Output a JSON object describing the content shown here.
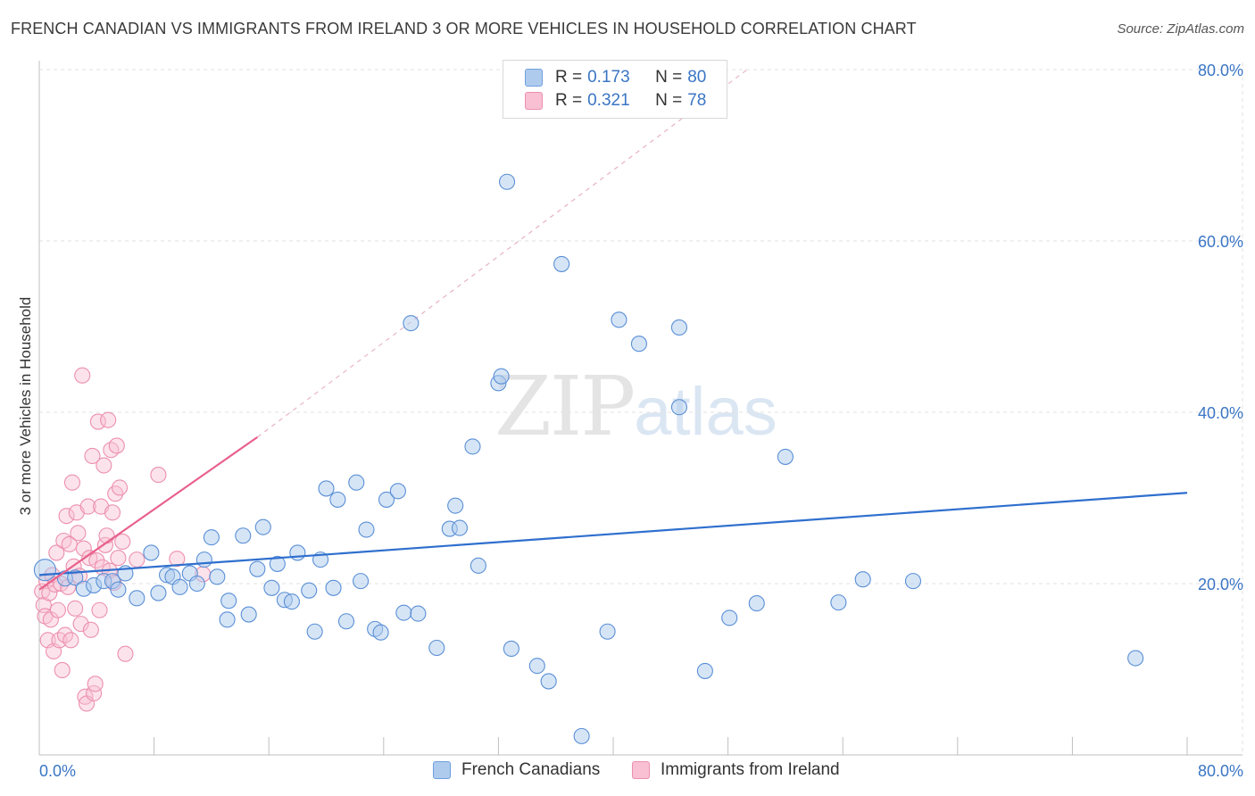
{
  "header": {
    "title": "FRENCH CANADIAN VS IMMIGRANTS FROM IRELAND 3 OR MORE VEHICLES IN HOUSEHOLD CORRELATION CHART",
    "source": "Source: ZipAtlas.com"
  },
  "watermark": {
    "zip": "ZIP",
    "atlas": "atlas"
  },
  "legend": {
    "rows": [
      {
        "r_label": "R =",
        "r_value": "0.173",
        "n_label": "N =",
        "n_value": "80",
        "fill": "#aecbee",
        "stroke": "#6f9fde"
      },
      {
        "r_label": "R =",
        "r_value": "0.321",
        "n_label": "N =",
        "n_value": "78",
        "fill": "#f8c0d2",
        "stroke": "#ec8fae"
      }
    ]
  },
  "bottom_legend": {
    "items": [
      {
        "label": "French Canadians",
        "fill": "#aecbee",
        "stroke": "#6f9fde"
      },
      {
        "label": "Immigrants from Ireland",
        "fill": "#f8c0d2",
        "stroke": "#ec8fae"
      }
    ]
  },
  "colors": {
    "blue_fill": "#aecbee",
    "blue_stroke": "#5a8fd6",
    "blue_line": "#2f6fce",
    "pink_fill": "#f8c0d2",
    "pink_stroke": "#ec8fae",
    "pink_line": "#e8608c",
    "grid": "#e2e2e2",
    "tick_label": "#3a75c4"
  },
  "chart_data": {
    "type": "scatter",
    "title": "FRENCH CANADIAN VS IMMIGRANTS FROM IRELAND 3 OR MORE VEHICLES IN HOUSEHOLD CORRELATION CHART",
    "xlabel": "",
    "ylabel": "3 or more Vehicles in Household",
    "xlim": [
      0,
      80
    ],
    "ylim": [
      0,
      80
    ],
    "x_tick_labels": [
      "0.0%",
      "80.0%"
    ],
    "y_ticks": [
      20,
      40,
      60,
      80
    ],
    "y_tick_labels": [
      "20.0%",
      "40.0%",
      "60.0%",
      "80.0%"
    ],
    "grid": true,
    "legend_position": "top-center",
    "series": [
      {
        "name": "French Canadians",
        "color": "#5a8fd6",
        "points": [
          [
            0.4,
            21.6
          ],
          [
            1.8,
            20.6
          ],
          [
            2.5,
            20.7
          ],
          [
            3.1,
            19.4
          ],
          [
            3.8,
            19.8
          ],
          [
            4.5,
            20.3
          ],
          [
            5.1,
            20.3
          ],
          [
            5.5,
            19.3
          ],
          [
            6.0,
            21.2
          ],
          [
            6.8,
            18.3
          ],
          [
            7.8,
            23.6
          ],
          [
            8.3,
            18.9
          ],
          [
            8.9,
            21.0
          ],
          [
            9.3,
            20.8
          ],
          [
            9.8,
            19.6
          ],
          [
            10.5,
            21.2
          ],
          [
            11.0,
            20.0
          ],
          [
            11.5,
            22.8
          ],
          [
            12.0,
            25.4
          ],
          [
            12.4,
            20.8
          ],
          [
            13.2,
            18.0
          ],
          [
            13.1,
            15.8
          ],
          [
            14.2,
            25.6
          ],
          [
            14.6,
            16.4
          ],
          [
            15.2,
            21.7
          ],
          [
            15.6,
            26.6
          ],
          [
            16.2,
            19.5
          ],
          [
            16.6,
            22.3
          ],
          [
            17.1,
            18.1
          ],
          [
            17.6,
            17.9
          ],
          [
            18.0,
            23.6
          ],
          [
            18.8,
            19.2
          ],
          [
            19.2,
            14.4
          ],
          [
            19.6,
            22.8
          ],
          [
            20.0,
            31.1
          ],
          [
            20.5,
            19.5
          ],
          [
            20.8,
            29.8
          ],
          [
            21.4,
            15.6
          ],
          [
            22.1,
            31.8
          ],
          [
            22.4,
            20.3
          ],
          [
            22.8,
            26.3
          ],
          [
            23.4,
            14.7
          ],
          [
            23.8,
            14.3
          ],
          [
            24.2,
            29.8
          ],
          [
            25.0,
            30.8
          ],
          [
            25.4,
            16.6
          ],
          [
            25.9,
            50.4
          ],
          [
            26.4,
            16.5
          ],
          [
            27.7,
            12.5
          ],
          [
            28.6,
            26.4
          ],
          [
            29.0,
            29.1
          ],
          [
            29.3,
            26.5
          ],
          [
            30.2,
            36.0
          ],
          [
            30.6,
            22.1
          ],
          [
            32.0,
            43.4
          ],
          [
            32.2,
            44.2
          ],
          [
            32.6,
            66.9
          ],
          [
            32.9,
            12.4
          ],
          [
            34.7,
            10.4
          ],
          [
            35.5,
            8.6
          ],
          [
            36.4,
            57.3
          ],
          [
            37.8,
            2.2
          ],
          [
            39.6,
            14.4
          ],
          [
            40.4,
            50.8
          ],
          [
            41.8,
            48.0
          ],
          [
            44.6,
            49.9
          ],
          [
            44.6,
            40.6
          ],
          [
            46.4,
            9.8
          ],
          [
            48.1,
            16.0
          ],
          [
            50.0,
            17.7
          ],
          [
            52.0,
            34.8
          ],
          [
            55.7,
            17.8
          ],
          [
            57.4,
            20.5
          ],
          [
            60.9,
            20.3
          ],
          [
            76.4,
            11.3
          ]
        ],
        "trend_line": {
          "x": [
            0,
            80
          ],
          "y": [
            21.0,
            30.6
          ]
        }
      },
      {
        "name": "Immigrants from Ireland",
        "color": "#ec8fae",
        "points": [
          [
            0.2,
            19.1
          ],
          [
            0.3,
            17.5
          ],
          [
            0.4,
            16.2
          ],
          [
            0.5,
            20.3
          ],
          [
            0.6,
            13.4
          ],
          [
            0.7,
            18.9
          ],
          [
            0.8,
            15.8
          ],
          [
            0.9,
            21.0
          ],
          [
            1.0,
            12.1
          ],
          [
            1.1,
            19.9
          ],
          [
            1.2,
            23.6
          ],
          [
            1.3,
            16.9
          ],
          [
            1.4,
            13.4
          ],
          [
            1.5,
            20.0
          ],
          [
            1.6,
            9.9
          ],
          [
            1.7,
            25.0
          ],
          [
            1.8,
            14.0
          ],
          [
            1.9,
            27.9
          ],
          [
            2.0,
            19.6
          ],
          [
            2.1,
            24.6
          ],
          [
            2.2,
            13.4
          ],
          [
            2.3,
            31.8
          ],
          [
            2.4,
            22.0
          ],
          [
            2.5,
            17.1
          ],
          [
            2.6,
            28.3
          ],
          [
            2.7,
            25.9
          ],
          [
            2.8,
            20.9
          ],
          [
            2.9,
            15.3
          ],
          [
            3.0,
            44.3
          ],
          [
            3.1,
            24.1
          ],
          [
            3.2,
            6.8
          ],
          [
            3.3,
            6.0
          ],
          [
            3.4,
            29.0
          ],
          [
            3.5,
            23.0
          ],
          [
            3.6,
            14.6
          ],
          [
            3.7,
            34.9
          ],
          [
            3.8,
            7.2
          ],
          [
            3.9,
            8.3
          ],
          [
            4.0,
            22.7
          ],
          [
            4.1,
            38.9
          ],
          [
            4.2,
            16.9
          ],
          [
            4.3,
            29.0
          ],
          [
            4.4,
            21.9
          ],
          [
            4.5,
            33.8
          ],
          [
            4.6,
            24.5
          ],
          [
            4.7,
            25.6
          ],
          [
            4.8,
            39.1
          ],
          [
            4.9,
            21.5
          ],
          [
            5.0,
            35.6
          ],
          [
            5.1,
            28.3
          ],
          [
            5.2,
            20.1
          ],
          [
            5.3,
            30.5
          ],
          [
            5.4,
            36.1
          ],
          [
            5.5,
            23.0
          ],
          [
            5.6,
            31.2
          ],
          [
            5.8,
            24.9
          ],
          [
            6.0,
            11.8
          ],
          [
            6.8,
            22.8
          ],
          [
            8.3,
            32.7
          ],
          [
            9.6,
            22.9
          ],
          [
            11.4,
            21.1
          ]
        ],
        "trend_line": {
          "x": [
            0,
            15.2
          ],
          "y": [
            19.3,
            37.1
          ]
        },
        "trend_extension": {
          "x": [
            15.2,
            49.5
          ],
          "y": [
            37.1,
            80.2
          ]
        }
      }
    ]
  }
}
